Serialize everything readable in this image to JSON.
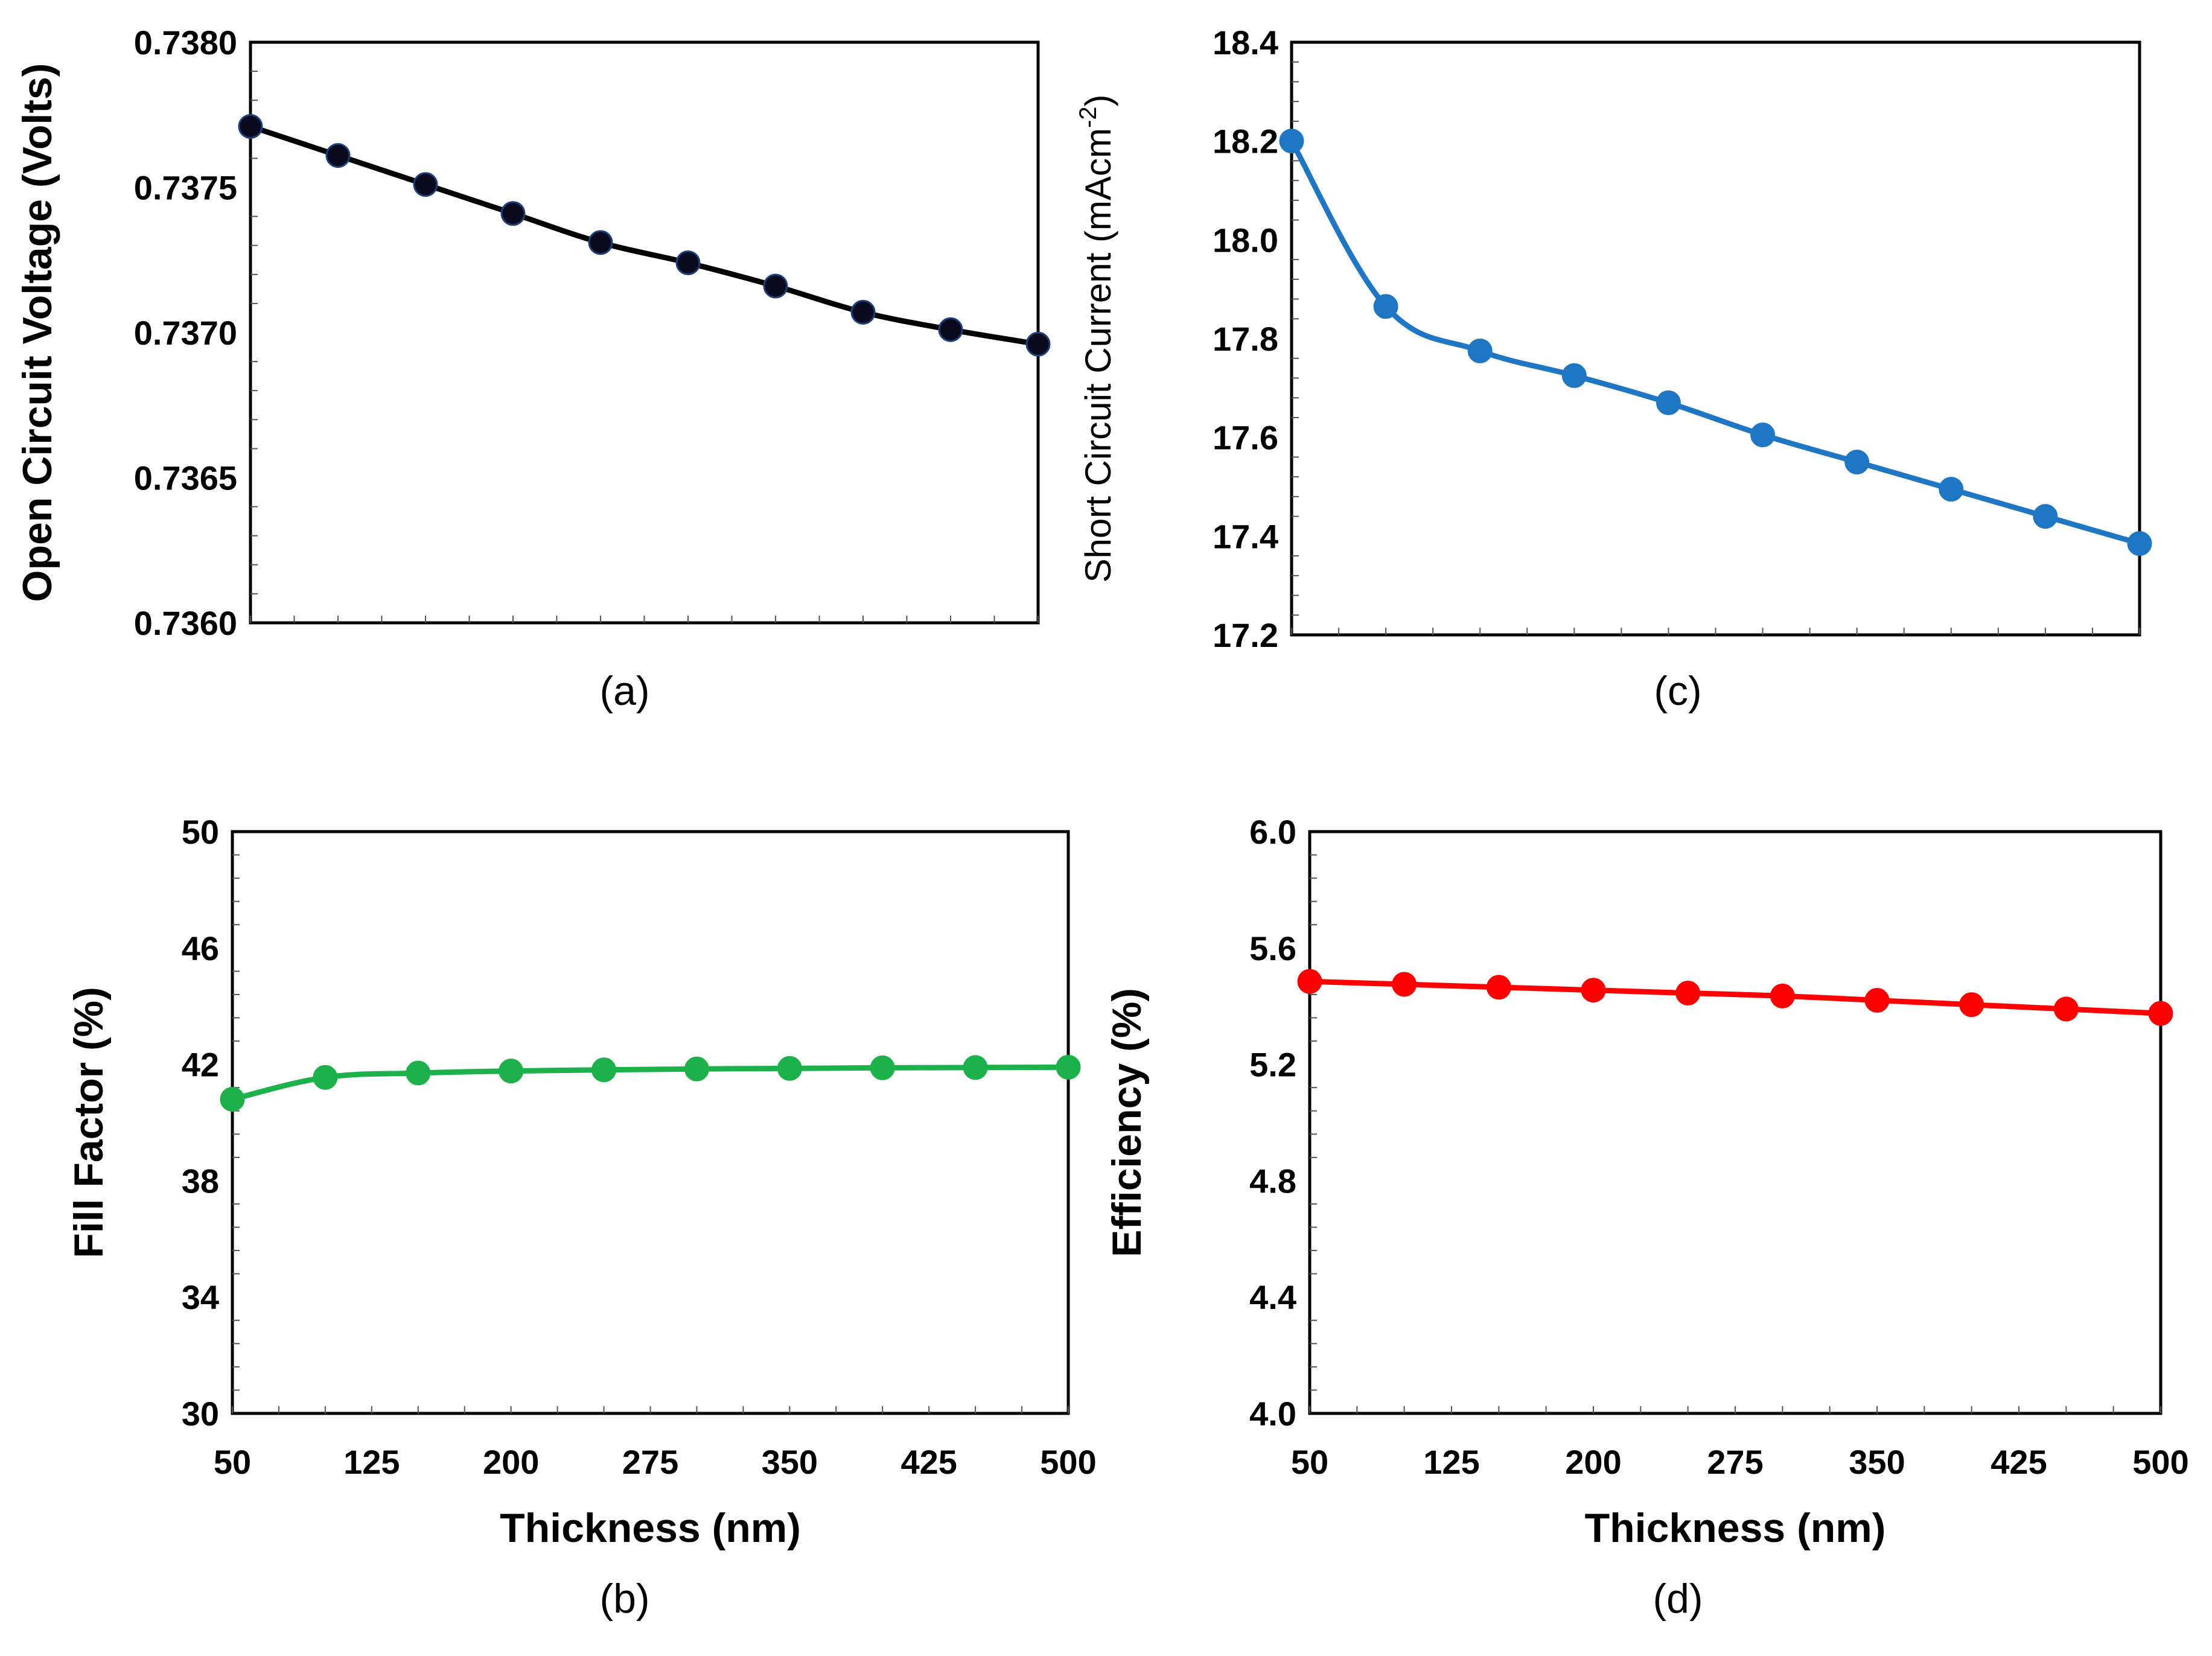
{
  "chart_data": [
    {
      "id": "a",
      "type": "line",
      "caption": "(a)",
      "xlabel": "",
      "ylabel": "Open Circuit Voltage (Volts)",
      "x": [
        50,
        100,
        150,
        200,
        250,
        300,
        350,
        400,
        450,
        500
      ],
      "xlim": [
        50,
        500
      ],
      "xticks": [],
      "ylim": [
        0.736,
        0.738
      ],
      "yticks": [
        "0.7360",
        "0.7365",
        "0.7370",
        "0.7375",
        "0.7380"
      ],
      "ytick_values": [
        0.736,
        0.7365,
        0.737,
        0.7375,
        0.738
      ],
      "series": [
        {
          "name": "Voc",
          "color": "#000000",
          "marker_color": "#0a0a1e",
          "values": [
            0.73771,
            0.73761,
            0.73751,
            0.73741,
            0.73731,
            0.73724,
            0.73716,
            0.73707,
            0.73701,
            0.73696
          ]
        }
      ]
    },
    {
      "id": "c",
      "type": "line",
      "caption": "(c)",
      "xlabel": "",
      "ylabel": "Short Circuit Current (mAcm",
      "ylabel_sup": "-2",
      "ylabel_end": ")",
      "x": [
        50,
        100,
        150,
        200,
        250,
        300,
        350,
        400,
        450,
        500
      ],
      "xlim": [
        50,
        500
      ],
      "xticks": [],
      "ylim": [
        17.2,
        18.4
      ],
      "yticks": [
        "17.2",
        "17.4",
        "17.6",
        "17.8",
        "18.0",
        "18.2",
        "18.4"
      ],
      "ytick_values": [
        17.2,
        17.4,
        17.6,
        17.8,
        18.0,
        18.2,
        18.4
      ],
      "series": [
        {
          "name": "Jsc",
          "color": "#1f77c4",
          "marker_color": "#1f77c4",
          "values": [
            18.2,
            17.865,
            17.775,
            17.725,
            17.67,
            17.605,
            17.55,
            17.495,
            17.44,
            17.385
          ]
        }
      ]
    },
    {
      "id": "b",
      "type": "line",
      "caption": "(b)",
      "xlabel": "Thickness (nm)",
      "ylabel": "Fill Factor (%)",
      "x": [
        50,
        100,
        150,
        200,
        250,
        300,
        350,
        400,
        450,
        500
      ],
      "xlim": [
        50,
        500
      ],
      "xticks": [
        "50",
        "125",
        "200",
        "275",
        "350",
        "425",
        "500"
      ],
      "xtick_values": [
        50,
        125,
        200,
        275,
        350,
        425,
        500
      ],
      "ylim": [
        30,
        50
      ],
      "yticks": [
        "30",
        "34",
        "38",
        "42",
        "46",
        "50"
      ],
      "ytick_values": [
        30,
        34,
        38,
        42,
        46,
        50
      ],
      "series": [
        {
          "name": "FF",
          "color": "#1db14b",
          "marker_color": "#1db14b",
          "values": [
            40.8,
            41.55,
            41.7,
            41.77,
            41.81,
            41.84,
            41.86,
            41.88,
            41.89,
            41.9
          ]
        }
      ]
    },
    {
      "id": "d",
      "type": "line",
      "caption": "(d)",
      "xlabel": "Thickness (nm)",
      "ylabel": "Efficiency (%)",
      "x": [
        50,
        100,
        150,
        200,
        250,
        300,
        350,
        400,
        450,
        500
      ],
      "xlim": [
        50,
        500
      ],
      "xticks": [
        "50",
        "125",
        "200",
        "275",
        "350",
        "425",
        "500"
      ],
      "xtick_values": [
        50,
        125,
        200,
        275,
        350,
        425,
        500
      ],
      "ylim": [
        4.0,
        6.0
      ],
      "yticks": [
        "4.0",
        "4.4",
        "4.8",
        "5.2",
        "5.6",
        "6.0"
      ],
      "ytick_values": [
        4.0,
        4.4,
        4.8,
        5.2,
        5.6,
        6.0
      ],
      "series": [
        {
          "name": "Efficiency",
          "color": "#ff0000",
          "marker_color": "#ff0000",
          "values": [
            5.485,
            5.475,
            5.465,
            5.455,
            5.445,
            5.435,
            5.42,
            5.405,
            5.39,
            5.375
          ]
        }
      ]
    }
  ]
}
